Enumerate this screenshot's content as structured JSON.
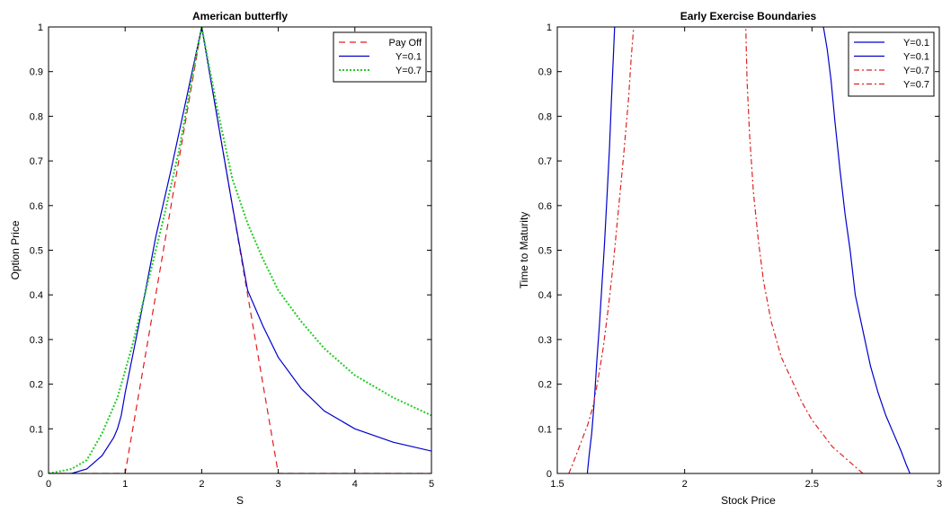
{
  "chart_data": [
    {
      "type": "line",
      "title": "American butterfly",
      "xlabel": "S",
      "ylabel": "Option Price",
      "xlim": [
        0,
        5
      ],
      "ylim": [
        0,
        1
      ],
      "xticks": [
        "0",
        "1",
        "2",
        "3",
        "4",
        "5"
      ],
      "yticks": [
        "0",
        "0.1",
        "0.2",
        "0.3",
        "0.4",
        "0.5",
        "0.6",
        "0.7",
        "0.8",
        "0.9",
        "1"
      ],
      "grid": false,
      "legend_position": "top-right",
      "series": [
        {
          "name": "Pay Off",
          "color": "#e41a1c",
          "style": "dashed",
          "x": [
            0,
            1,
            2,
            3,
            5
          ],
          "y": [
            0,
            0,
            1,
            0,
            0
          ]
        },
        {
          "name": "Y=0.1",
          "color": "#0000cc",
          "style": "solid",
          "x": [
            0,
            0.3,
            0.5,
            0.7,
            0.85,
            0.9,
            0.95,
            1.0,
            1.2,
            1.4,
            1.6,
            1.8,
            2.0,
            2.2,
            2.4,
            2.6,
            2.8,
            3.0,
            3.3,
            3.6,
            4.0,
            4.5,
            5.0
          ],
          "y": [
            0,
            0,
            0.01,
            0.04,
            0.08,
            0.1,
            0.13,
            0.18,
            0.35,
            0.53,
            0.68,
            0.84,
            1.0,
            0.8,
            0.6,
            0.41,
            0.33,
            0.26,
            0.19,
            0.14,
            0.1,
            0.07,
            0.05
          ]
        },
        {
          "name": "Y=0.7",
          "color": "#22cc22",
          "style": "dotted",
          "x": [
            0,
            0.3,
            0.5,
            0.7,
            0.9,
            1.1,
            1.3,
            1.5,
            1.7,
            1.9,
            2.0,
            2.2,
            2.4,
            2.6,
            2.8,
            3.0,
            3.3,
            3.6,
            4.0,
            4.5,
            5.0
          ],
          "y": [
            0,
            0.01,
            0.03,
            0.09,
            0.17,
            0.29,
            0.43,
            0.57,
            0.72,
            0.91,
            1.0,
            0.82,
            0.66,
            0.56,
            0.48,
            0.41,
            0.34,
            0.28,
            0.22,
            0.17,
            0.13
          ]
        }
      ]
    },
    {
      "type": "line",
      "title": "Early Exercise Boundaries",
      "xlabel": "Stock Price",
      "ylabel": "Time to Maturity",
      "xlim": [
        1.5,
        3
      ],
      "ylim": [
        0,
        1
      ],
      "xticks": [
        "1.5",
        "2",
        "2.5",
        "3"
      ],
      "yticks": [
        "0",
        "0.1",
        "0.2",
        "0.3",
        "0.4",
        "0.5",
        "0.6",
        "0.7",
        "0.8",
        "0.9",
        "1"
      ],
      "grid": false,
      "legend_position": "top-right",
      "series": [
        {
          "name": "Y=0.1",
          "color": "#0000cc",
          "style": "solid",
          "x": [
            1.618,
            1.625,
            1.635,
            1.645,
            1.655,
            1.665,
            1.675,
            1.685,
            1.695,
            1.705,
            1.712,
            1.72,
            1.725
          ],
          "y": [
            0,
            0.04,
            0.09,
            0.16,
            0.25,
            0.33,
            0.42,
            0.51,
            0.62,
            0.73,
            0.83,
            0.93,
            1.0
          ]
        },
        {
          "name": "Y=0.1",
          "color": "#0000cc",
          "style": "solid",
          "x": [
            2.885,
            2.87,
            2.85,
            2.82,
            2.79,
            2.76,
            2.73,
            2.7,
            2.67,
            2.65,
            2.63,
            2.61,
            2.59,
            2.575,
            2.56,
            2.545
          ],
          "y": [
            0,
            0.02,
            0.05,
            0.09,
            0.13,
            0.18,
            0.24,
            0.32,
            0.4,
            0.5,
            0.58,
            0.68,
            0.79,
            0.88,
            0.95,
            1.0
          ]
        },
        {
          "name": "Y=0.7",
          "color": "#dd2222",
          "style": "dashdot",
          "x": [
            1.545,
            1.56,
            1.58,
            1.6,
            1.62,
            1.64,
            1.66,
            1.68,
            1.7,
            1.72,
            1.74,
            1.76,
            1.78,
            1.79,
            1.8
          ],
          "y": [
            0,
            0.02,
            0.05,
            0.08,
            0.11,
            0.15,
            0.21,
            0.28,
            0.37,
            0.47,
            0.59,
            0.71,
            0.84,
            0.93,
            1.0
          ]
        },
        {
          "name": "Y=0.7",
          "color": "#dd2222",
          "style": "dashdot",
          "x": [
            2.7,
            2.66,
            2.62,
            2.58,
            2.54,
            2.5,
            2.46,
            2.42,
            2.38,
            2.34,
            2.31,
            2.29,
            2.27,
            2.255,
            2.245,
            2.24
          ],
          "y": [
            0,
            0.02,
            0.04,
            0.06,
            0.09,
            0.12,
            0.16,
            0.21,
            0.26,
            0.34,
            0.43,
            0.52,
            0.63,
            0.76,
            0.88,
            1.0
          ]
        }
      ]
    }
  ]
}
